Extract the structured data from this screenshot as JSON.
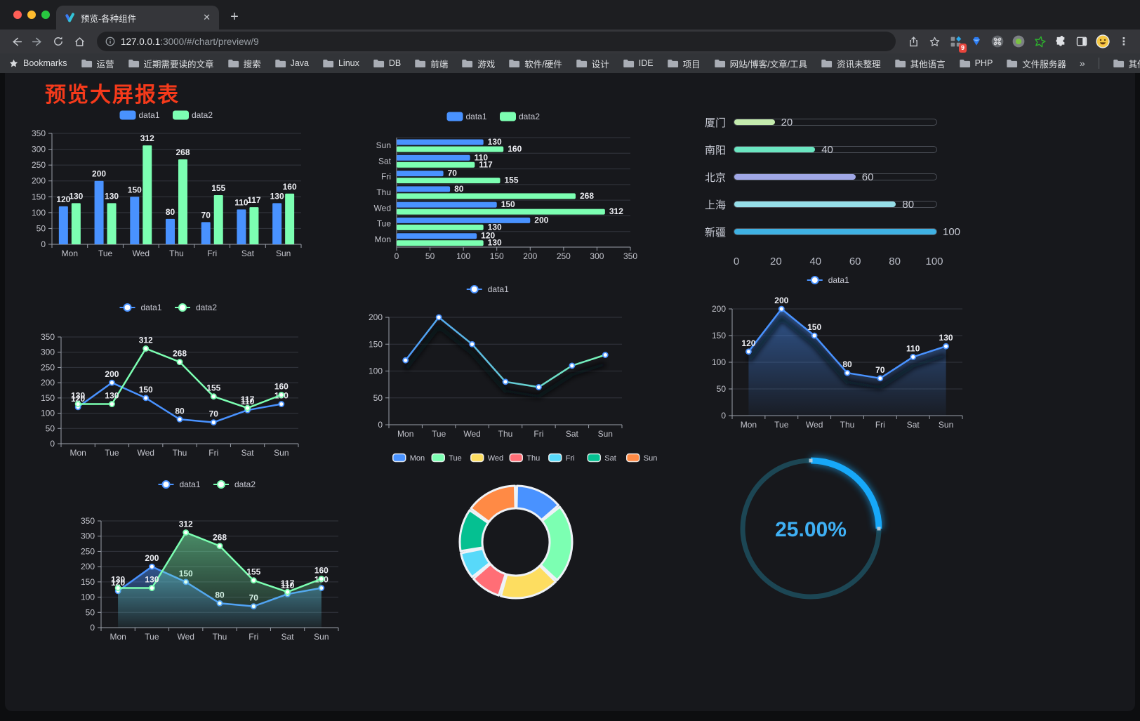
{
  "browser": {
    "tab_title": "预览-各种组件",
    "close_symbol": "✕",
    "new_tab_symbol": "+",
    "url_host": "127.0.0.1",
    "url_path": ":3000/#/chart/preview/9",
    "extension_badge": "9",
    "bookmarks_label": "Bookmarks",
    "bookmarks": [
      "运营",
      "近期需要读的文章",
      "搜索",
      "Java",
      "Linux",
      "DB",
      "前端",
      "游戏",
      "软件/硬件",
      "设计",
      "IDE",
      "项目",
      "网站/博客/文章/工具",
      "资讯未整理",
      "其他语言",
      "PHP",
      "文件服务器"
    ],
    "overflow_symbol": "»",
    "other_bookmarks": "其他书签"
  },
  "page": {
    "title": "预览大屏报表"
  },
  "chart_data": [
    {
      "id": "grouped-bar-vertical",
      "type": "bar",
      "orientation": "vertical",
      "categories": [
        "Mon",
        "Tue",
        "Wed",
        "Thu",
        "Fri",
        "Sat",
        "Sun"
      ],
      "series": [
        {
          "name": "data1",
          "color": "#4992ff",
          "values": [
            120,
            200,
            150,
            80,
            70,
            110,
            130
          ]
        },
        {
          "name": "data2",
          "color": "#7cffb2",
          "values": [
            130,
            130,
            312,
            268,
            155,
            117,
            160
          ]
        }
      ],
      "ylim": [
        0,
        350
      ],
      "ytick_step": 50,
      "legend_position": "top",
      "grid": true,
      "value_labels": true
    },
    {
      "id": "grouped-bar-horizontal",
      "type": "bar",
      "orientation": "horizontal",
      "categories": [
        "Mon",
        "Tue",
        "Wed",
        "Thu",
        "Fri",
        "Sat",
        "Sun"
      ],
      "series": [
        {
          "name": "data1",
          "color": "#4992ff",
          "values": [
            120,
            200,
            150,
            80,
            70,
            110,
            130
          ]
        },
        {
          "name": "data2",
          "color": "#7cffb2",
          "values": [
            130,
            130,
            312,
            268,
            155,
            117,
            160
          ]
        }
      ],
      "xlim": [
        0,
        350
      ],
      "xtick_step": 50,
      "legend_position": "top",
      "grid": true,
      "value_labels": true
    },
    {
      "id": "city-progress-bars",
      "type": "bar",
      "subtype": "progress",
      "categories": [
        "厦门",
        "南阳",
        "北京",
        "上海",
        "新疆"
      ],
      "values": [
        20,
        40,
        60,
        80,
        100
      ],
      "colors": [
        "#c4ebad",
        "#6be6c1",
        "#a0a7e6",
        "#96dee8",
        "#3fb1e3"
      ],
      "xlim": [
        0,
        100
      ],
      "xticks": [
        0,
        20,
        40,
        60,
        80,
        100
      ],
      "value_labels": true
    },
    {
      "id": "line-two-series",
      "type": "line",
      "categories": [
        "Mon",
        "Tue",
        "Wed",
        "Thu",
        "Fri",
        "Sat",
        "Sun"
      ],
      "series": [
        {
          "name": "data1",
          "color": "#4992ff",
          "values": [
            120,
            200,
            150,
            80,
            70,
            110,
            130
          ]
        },
        {
          "name": "data2",
          "color": "#7cffb2",
          "values": [
            130,
            130,
            312,
            268,
            155,
            117,
            160
          ]
        }
      ],
      "ylim": [
        0,
        350
      ],
      "ytick_step": 50,
      "legend_position": "top",
      "grid": true,
      "value_labels": true
    },
    {
      "id": "line-gradient",
      "type": "line",
      "categories": [
        "Mon",
        "Tue",
        "Wed",
        "Thu",
        "Fri",
        "Sat",
        "Sun"
      ],
      "series": [
        {
          "name": "data1",
          "color": "#4992ff",
          "gradient": [
            "#4992ff",
            "#7cffb2"
          ],
          "values": [
            120,
            200,
            150,
            80,
            70,
            110,
            130
          ]
        }
      ],
      "ylim": [
        0,
        200
      ],
      "ytick_step": 50,
      "legend_position": "top",
      "grid": true,
      "value_labels": false,
      "shadow": true
    },
    {
      "id": "area-single-series",
      "type": "area",
      "categories": [
        "Mon",
        "Tue",
        "Wed",
        "Thu",
        "Fri",
        "Sat",
        "Sun"
      ],
      "series": [
        {
          "name": "data1",
          "color": "#4992ff",
          "values": [
            120,
            200,
            150,
            80,
            70,
            110,
            130
          ]
        }
      ],
      "ylim": [
        0,
        200
      ],
      "ytick_step": 50,
      "legend_position": "top",
      "grid": true,
      "value_labels": true,
      "area": true,
      "shadow": true
    },
    {
      "id": "area-two-series",
      "type": "area",
      "categories": [
        "Mon",
        "Tue",
        "Wed",
        "Thu",
        "Fri",
        "Sat",
        "Sun"
      ],
      "series": [
        {
          "name": "data1",
          "color": "#4992ff",
          "values": [
            120,
            200,
            150,
            80,
            70,
            110,
            130
          ]
        },
        {
          "name": "data2",
          "color": "#7cffb2",
          "values": [
            130,
            130,
            312,
            268,
            155,
            117,
            160
          ]
        }
      ],
      "ylim": [
        0,
        350
      ],
      "ytick_step": 50,
      "legend_position": "top",
      "grid": true,
      "value_labels": true,
      "area": true
    },
    {
      "id": "donut",
      "type": "pie",
      "categories": [
        "Mon",
        "Tue",
        "Wed",
        "Thu",
        "Fri",
        "Sat",
        "Sun"
      ],
      "values": [
        120,
        200,
        150,
        80,
        70,
        110,
        130
      ],
      "colors": [
        "#4992ff",
        "#7cffb2",
        "#fddd60",
        "#ff6e76",
        "#58d9f9",
        "#05c091",
        "#ff8a45"
      ],
      "legend_position": "top",
      "inner_radius_ratio": 0.6
    },
    {
      "id": "gauge-percentage",
      "type": "gauge",
      "value": 25,
      "display": "25.00%",
      "range": [
        0,
        100
      ],
      "color": "#17a8f9",
      "track_color": "#1c4654",
      "text_color": "#3fb0f4"
    }
  ]
}
